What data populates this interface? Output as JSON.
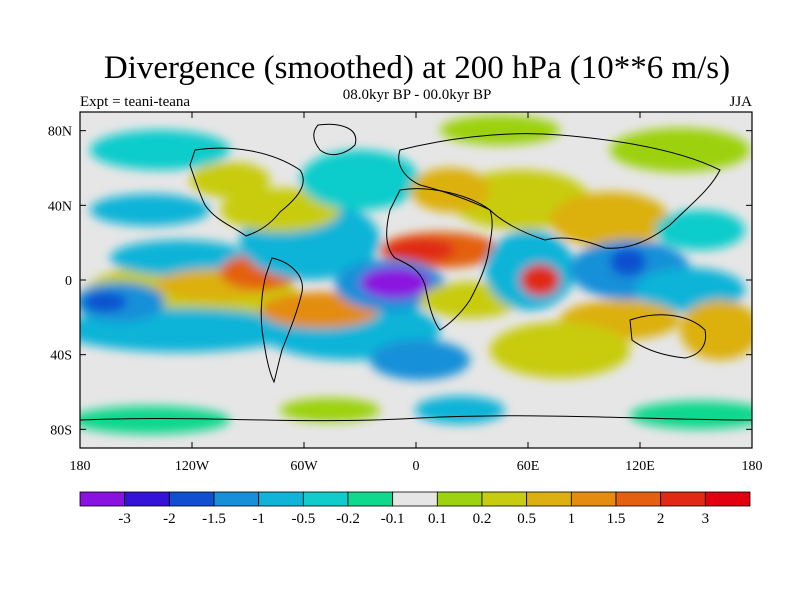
{
  "title": "Divergence (smoothed) at 200 hPa (10**6 m/s)",
  "subtitle": "08.0kyr BP - 00.0kyr BP",
  "expt_label": "Expt = teani-teana",
  "season": "JJA",
  "map": {
    "lat_tick_labels": [
      "80N",
      "40N",
      "0",
      "40S",
      "80S"
    ],
    "lat_tick_values": [
      80,
      40,
      0,
      -40,
      -80
    ],
    "lon_tick_labels": [
      "180",
      "120W",
      "60W",
      "0",
      "60E",
      "120E",
      "180"
    ],
    "lon_tick_values": [
      -180,
      -120,
      -60,
      0,
      60,
      120,
      180
    ],
    "lon_range": [
      -180,
      180
    ],
    "lat_range": [
      -90,
      90
    ]
  },
  "colorbar": {
    "colors": [
      "#8a12e0",
      "#3512d8",
      "#1050d0",
      "#1890d8",
      "#10b4d8",
      "#10cccc",
      "#10d88c",
      "#e6e6e6",
      "#9cd210",
      "#c8cc10",
      "#dcb010",
      "#e48c10",
      "#e46010",
      "#e02a14",
      "#e20010"
    ],
    "labels": [
      "-3",
      "-2",
      "-1.5",
      "-1",
      "-0.5",
      "-0.2",
      "-0.1",
      "0.1",
      "0.2",
      "0.5",
      "1",
      "1.5",
      "2",
      "3"
    ]
  }
}
